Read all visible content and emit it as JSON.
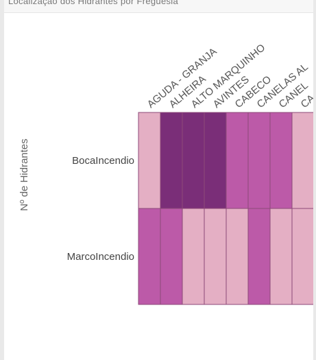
{
  "header": {
    "text": "Localização dos Hidrantes por Freguesia"
  },
  "chart_data": {
    "type": "heatmap",
    "ylabel": "Nº de Hidrantes",
    "x_categories": [
      "AGUDA - GRANJA",
      "ALHEIRA",
      "ALTO MARQUINHO",
      "AVINTES",
      "CABECO",
      "CANELAS AL",
      "CANEL",
      "CA"
    ],
    "y_categories": [
      "BocaIncendio",
      "MarcoIncendio"
    ],
    "values": [
      [
        1,
        4,
        4,
        4,
        3,
        3,
        3,
        1
      ],
      [
        3,
        3,
        1,
        1,
        1,
        3,
        1,
        1
      ]
    ],
    "colors": {
      "1": "#e4afc4",
      "3": "#bc5aa8",
      "4": "#7a2e78"
    }
  }
}
